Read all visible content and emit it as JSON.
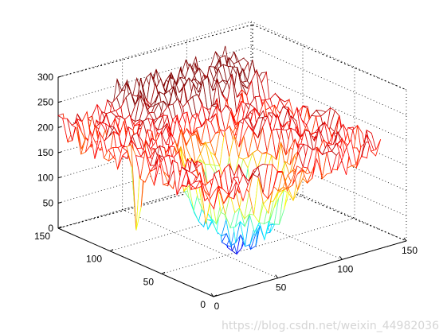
{
  "chart_data": {
    "type": "surface3d",
    "title": "",
    "xlabel": "",
    "ylabel": "",
    "zlabel": "",
    "xlim": [
      0,
      150
    ],
    "ylim": [
      0,
      150
    ],
    "zlim": [
      0,
      300
    ],
    "x_ticks": [
      "0",
      "50",
      "100",
      "150"
    ],
    "y_ticks": [
      "0",
      "50",
      "100",
      "150"
    ],
    "z_ticks": [
      "0",
      "50",
      "100",
      "150",
      "200",
      "250",
      "300"
    ],
    "grid": true,
    "box": "3d",
    "colormap": "jet",
    "surface_description": {
      "base_level": 200,
      "features": [
        {
          "kind": "plateau",
          "x_range": [
            0,
            130
          ],
          "y_range": [
            0,
            150
          ],
          "z": 205
        },
        {
          "kind": "basin",
          "x_center": 55,
          "y_center": 45,
          "x_span": 35,
          "y_span": 45,
          "z_min": 20
        },
        {
          "kind": "ridge",
          "x_range": [
            40,
            130
          ],
          "y_range": [
            110,
            150
          ],
          "z": 260
        },
        {
          "kind": "spike_down",
          "x": 5,
          "y": 80,
          "z": 20
        },
        {
          "kind": "spike_down",
          "x": 15,
          "y": 25,
          "z": 30
        }
      ]
    }
  },
  "watermark": "https://blog.csdn.net/weixin_44982036"
}
